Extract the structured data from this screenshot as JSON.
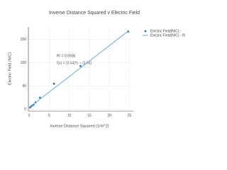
{
  "chart_data": {
    "type": "scatter",
    "title": "Inverse Distance Squared v Electric Field",
    "x_label": "Inverse Distance Squared (1/m^2)",
    "y_label": "Electric Field (N/C)",
    "annotations": [
      "R² = 0.9936",
      "f(x) = (6.64)*x + (3.98)"
    ],
    "series": [
      {
        "name": "Electric Field(N/C)",
        "color": "#1f77b4",
        "kind": "scatter",
        "x": [
          0.2,
          0.4,
          0.7,
          1.1,
          1.6,
          2.7,
          6.2,
          12.8,
          24.7
        ],
        "values": [
          4,
          6,
          8,
          10,
          15,
          25,
          55,
          93,
          167
        ]
      },
      {
        "name": "Electric Field(N/C) - fit",
        "color": "#6baed6",
        "kind": "line",
        "x": [
          0,
          24.7
        ],
        "values": [
          4,
          168
        ]
      }
    ],
    "xlim": [
      -0.2,
      26
    ],
    "xticks": [
      0,
      5,
      10,
      15,
      20,
      25
    ],
    "ylim": [
      -4,
      177
    ],
    "yticks": [
      0,
      50,
      100,
      150
    ],
    "grid": true
  }
}
